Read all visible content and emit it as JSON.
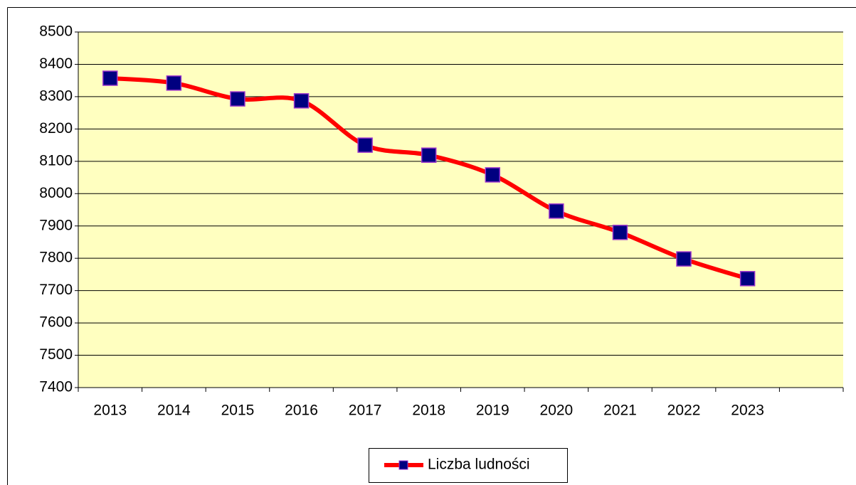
{
  "chart_data": {
    "type": "line",
    "categories": [
      "2013",
      "2014",
      "2015",
      "2016",
      "2017",
      "2018",
      "2019",
      "2020",
      "2021",
      "2022",
      "2023",
      null
    ],
    "series": [
      {
        "name": "Liczba ludności",
        "color": "#ff0000",
        "marker_color": "#000080",
        "values": [
          8357,
          8342,
          8293,
          8287,
          8150,
          8119,
          8058,
          7946,
          7880,
          7798,
          7737,
          null
        ]
      }
    ],
    "ylim": [
      7400,
      8500
    ],
    "yticks": [
      7400,
      7500,
      7600,
      7700,
      7800,
      7900,
      8000,
      8100,
      8200,
      8300,
      8400,
      8500
    ],
    "grid": true,
    "plot_background": "#ffffc0",
    "legend": "bottom"
  }
}
